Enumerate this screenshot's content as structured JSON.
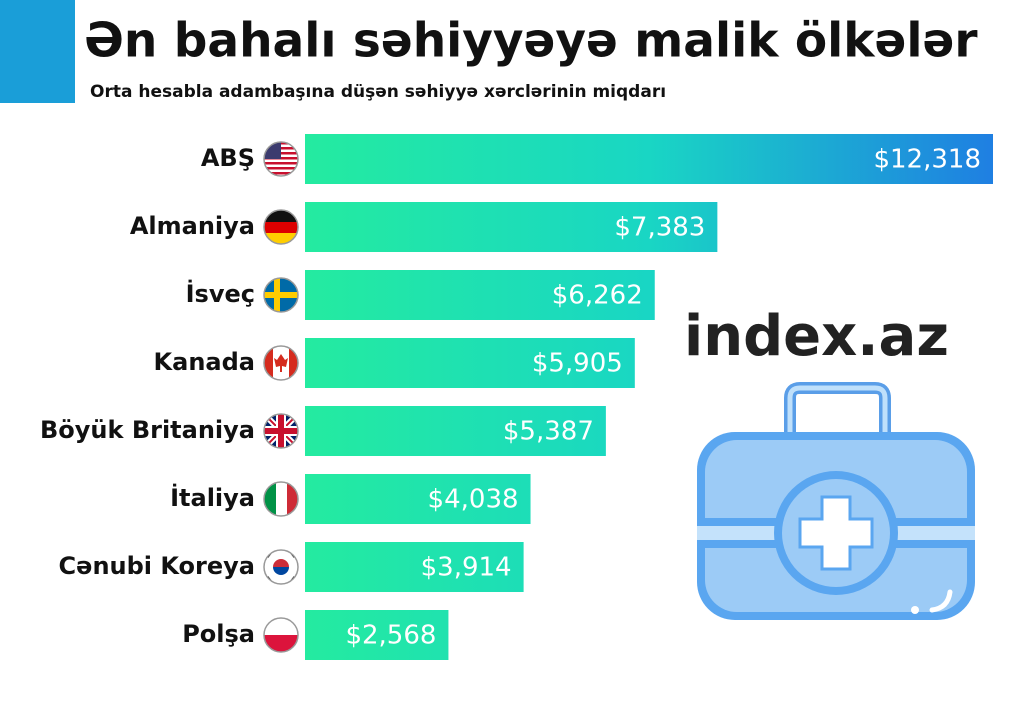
{
  "chart_data": {
    "type": "bar",
    "orientation": "horizontal",
    "title": "Ən bahalı səhiyyəyə malik ölkələr",
    "subtitle": "Orta hesabla adambaşına düşən səhiyyə xərclərinin miqdarı",
    "categories": [
      "ABŞ",
      "Almaniya",
      "İsveç",
      "Kanada",
      "Böyük Britaniya",
      "İtaliya",
      "Cənubi Koreya",
      "Polşa"
    ],
    "values": [
      12318,
      7383,
      6262,
      5905,
      5387,
      4038,
      3914,
      2568
    ],
    "value_labels": [
      "$12,318",
      "$7,383",
      "$6,262",
      "$5,905",
      "$5,387",
      "$4,038",
      "$3,914",
      "$2,568"
    ],
    "colors": [
      "#24eba0",
      "#1f7fe2"
    ],
    "annotations": [
      "index.az"
    ]
  }
}
